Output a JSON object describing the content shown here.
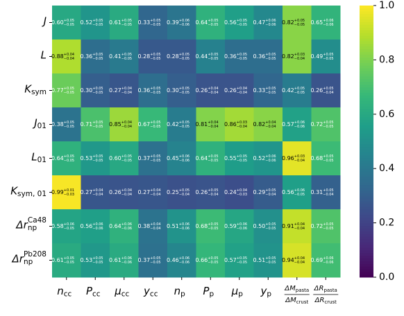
{
  "chart_data": {
    "type": "heatmap",
    "rows": [
      {
        "base": "J"
      },
      {
        "base": "L"
      },
      {
        "base": "K",
        "sub": "sym"
      },
      {
        "base": "J",
        "sub": "01"
      },
      {
        "base": "L",
        "sub": "01"
      },
      {
        "base": "K",
        "sub": "sym, 01"
      },
      {
        "base": "Δr",
        "sub": "np",
        "sup": "Ca48"
      },
      {
        "base": "Δr",
        "sub": "np",
        "sup": "Pb208"
      }
    ],
    "columns": [
      {
        "base": "n",
        "sub": "cc"
      },
      {
        "base": "P",
        "sub": "cc"
      },
      {
        "base": "μ",
        "sub": "cc"
      },
      {
        "base": "y",
        "sub": "cc"
      },
      {
        "base": "n",
        "sub": "p"
      },
      {
        "base": "P",
        "sub": "p"
      },
      {
        "base": "μ",
        "sub": "p"
      },
      {
        "base": "y",
        "sub": "p"
      },
      {
        "num": {
          "base": "ΔM",
          "sub": "pasta"
        },
        "den": {
          "base": "ΔM",
          "sub": "crust"
        }
      },
      {
        "num": {
          "base": "ΔR",
          "sub": "pasta"
        },
        "den": {
          "base": "ΔR",
          "sub": "crust"
        }
      }
    ],
    "values": [
      [
        0.6,
        0.52,
        0.61,
        0.33,
        0.39,
        0.64,
        0.56,
        0.47,
        0.82,
        0.65
      ],
      [
        0.88,
        0.36,
        0.41,
        0.28,
        0.28,
        0.44,
        0.36,
        0.36,
        0.82,
        0.49
      ],
      [
        0.77,
        0.3,
        0.27,
        0.36,
        0.3,
        0.26,
        0.26,
        0.33,
        0.42,
        0.26
      ],
      [
        0.38,
        0.71,
        0.85,
        0.67,
        0.42,
        0.81,
        0.86,
        0.82,
        0.57,
        0.72
      ],
      [
        0.64,
        0.53,
        0.6,
        0.37,
        0.45,
        0.64,
        0.55,
        0.52,
        0.96,
        0.68
      ],
      [
        0.99,
        0.27,
        0.26,
        0.27,
        0.25,
        0.26,
        0.24,
        0.29,
        0.56,
        0.31
      ],
      [
        0.58,
        0.56,
        0.64,
        0.38,
        0.51,
        0.68,
        0.59,
        0.5,
        0.91,
        0.72
      ],
      [
        0.61,
        0.53,
        0.61,
        0.37,
        0.46,
        0.66,
        0.57,
        0.51,
        0.94,
        0.69
      ]
    ],
    "value_labels": [
      [
        "0.60",
        "0.52",
        "0.61",
        "0.33",
        "0.39",
        "0.64",
        "0.56",
        "0.47",
        "0.82",
        "0.65"
      ],
      [
        "0.88",
        "0.36",
        "0.41",
        "0.28",
        "0.28",
        "0.44",
        "0.36",
        "0.36",
        "0.82",
        "0.49"
      ],
      [
        "0.77",
        "0.30",
        "0.27",
        "0.36",
        "0.30",
        "0.26",
        "0.26",
        "0.33",
        "0.42",
        "0.26"
      ],
      [
        "0.38",
        "0.71",
        "0.85",
        "0.67",
        "0.42",
        "0.81",
        "0.86",
        "0.82",
        "0.57",
        "0.72"
      ],
      [
        "0.64",
        "0.53",
        "0.60",
        "0.37",
        "0.45",
        "0.64",
        "0.55",
        "0.52",
        "0.96",
        "0.68"
      ],
      [
        "0.99",
        "0.27",
        "0.26",
        "0.27",
        "0.25",
        "0.26",
        "0.24",
        "0.29",
        "0.56",
        "0.31"
      ],
      [
        "0.58",
        "0.56",
        "0.64",
        "0.38",
        "0.51",
        "0.68",
        "0.59",
        "0.50",
        "0.91",
        "0.72"
      ],
      [
        "0.61",
        "0.53",
        "0.61",
        "0.37",
        "0.46",
        "0.66",
        "0.57",
        "0.51",
        "0.94",
        "0.69"
      ]
    ],
    "err_plus": [
      [
        0.05,
        0.05,
        0.05,
        0.05,
        0.06,
        0.05,
        0.05,
        0.06,
        0.05,
        0.06
      ],
      [
        0.04,
        0.05,
        0.05,
        0.05,
        0.05,
        0.05,
        0.05,
        0.05,
        0.03,
        0.05
      ],
      [
        0.05,
        0.05,
        0.04,
        0.05,
        0.05,
        0.04,
        0.04,
        0.05,
        0.05,
        0.05
      ],
      [
        0.05,
        0.05,
        0.04,
        0.05,
        0.05,
        0.04,
        0.03,
        0.04,
        0.06,
        0.05
      ],
      [
        0.05,
        0.05,
        0.05,
        0.05,
        0.06,
        0.05,
        0.05,
        0.06,
        0.03,
        0.05
      ],
      [
        0.01,
        0.04,
        0.04,
        0.04,
        0.05,
        0.05,
        0.04,
        0.05,
        0.06,
        0.05
      ],
      [
        0.06,
        0.06,
        0.06,
        0.04,
        0.06,
        0.05,
        0.06,
        0.05,
        0.04,
        0.05
      ],
      [
        0.05,
        0.05,
        0.06,
        0.05,
        0.06,
        0.05,
        0.05,
        0.05,
        0.04,
        0.06
      ]
    ],
    "err_minus": [
      [
        0.05,
        0.05,
        0.05,
        0.05,
        0.06,
        0.05,
        0.05,
        0.06,
        0.05,
        0.06
      ],
      [
        0.04,
        0.05,
        0.05,
        0.05,
        0.05,
        0.05,
        0.05,
        0.05,
        0.04,
        0.05
      ],
      [
        0.05,
        0.05,
        0.04,
        0.05,
        0.05,
        0.04,
        0.04,
        0.05,
        0.05,
        0.04
      ],
      [
        0.05,
        0.05,
        0.04,
        0.05,
        0.05,
        0.04,
        0.04,
        0.04,
        0.06,
        0.05
      ],
      [
        0.05,
        0.05,
        0.05,
        0.05,
        0.06,
        0.05,
        0.05,
        0.06,
        0.04,
        0.05
      ],
      [
        0.03,
        0.04,
        0.04,
        0.04,
        0.04,
        0.04,
        0.03,
        0.04,
        0.05,
        0.04
      ],
      [
        0.05,
        0.06,
        0.06,
        0.04,
        0.06,
        0.05,
        0.06,
        0.05,
        0.04,
        0.05
      ],
      [
        0.05,
        0.05,
        0.06,
        0.05,
        0.06,
        0.05,
        0.05,
        0.05,
        0.04,
        0.06
      ]
    ],
    "err_plus_labels": [
      [
        "+0.05",
        "+0.05",
        "+0.05",
        "+0.05",
        "+0.06",
        "+0.05",
        "+0.05",
        "+0.06",
        "+0.05",
        "+0.06"
      ],
      [
        "+0.04",
        "+0.05",
        "+0.05",
        "+0.05",
        "+0.05",
        "+0.05",
        "+0.05",
        "+0.05",
        "+0.03",
        "+0.05"
      ],
      [
        "+0.05",
        "+0.05",
        "+0.04",
        "+0.05",
        "+0.05",
        "+0.04",
        "+0.04",
        "+0.05",
        "+0.05",
        "+0.05"
      ],
      [
        "+0.05",
        "+0.05",
        "+0.04",
        "+0.05",
        "+0.05",
        "+0.04",
        "+0.03",
        "+0.04",
        "+0.06",
        "+0.05"
      ],
      [
        "+0.05",
        "+0.05",
        "+0.05",
        "+0.05",
        "+0.06",
        "+0.05",
        "+0.05",
        "+0.06",
        "+0.03",
        "+0.05"
      ],
      [
        "+0.01",
        "+0.04",
        "+0.04",
        "+0.04",
        "+0.05",
        "+0.05",
        "+0.04",
        "+0.05",
        "+0.06",
        "+0.05"
      ],
      [
        "+0.06",
        "+0.06",
        "+0.06",
        "+0.04",
        "+0.06",
        "+0.05",
        "+0.06",
        "+0.05",
        "+0.04",
        "+0.05"
      ],
      [
        "+0.05",
        "+0.05",
        "+0.06",
        "+0.05",
        "+0.06",
        "+0.05",
        "+0.05",
        "+0.05",
        "+0.04",
        "+0.06"
      ]
    ],
    "err_minus_labels": [
      [
        "−0.05",
        "−0.05",
        "−0.05",
        "−0.05",
        "−0.06",
        "−0.05",
        "−0.05",
        "−0.06",
        "−0.05",
        "−0.06"
      ],
      [
        "−0.04",
        "−0.05",
        "−0.05",
        "−0.05",
        "−0.05",
        "−0.05",
        "−0.05",
        "−0.05",
        "−0.04",
        "−0.05"
      ],
      [
        "−0.05",
        "−0.05",
        "−0.04",
        "−0.05",
        "−0.05",
        "−0.04",
        "−0.04",
        "−0.05",
        "−0.05",
        "−0.04"
      ],
      [
        "−0.05",
        "−0.05",
        "−0.04",
        "−0.05",
        "−0.05",
        "−0.04",
        "−0.04",
        "−0.04",
        "−0.06",
        "−0.05"
      ],
      [
        "−0.05",
        "−0.05",
        "−0.05",
        "−0.05",
        "−0.06",
        "−0.05",
        "−0.05",
        "−0.06",
        "−0.04",
        "−0.05"
      ],
      [
        "−0.03",
        "−0.04",
        "−0.04",
        "−0.04",
        "−0.04",
        "−0.04",
        "−0.03",
        "−0.04",
        "−0.05",
        "−0.04"
      ],
      [
        "−0.05",
        "−0.06",
        "−0.06",
        "−0.04",
        "−0.06",
        "−0.05",
        "−0.06",
        "−0.05",
        "−0.04",
        "−0.05"
      ],
      [
        "−0.05",
        "−0.05",
        "−0.06",
        "−0.05",
        "−0.06",
        "−0.05",
        "−0.05",
        "−0.05",
        "−0.04",
        "−0.06"
      ]
    ],
    "colormap": [
      "#440154",
      "#482878",
      "#3e4989",
      "#31688e",
      "#26828e",
      "#1f9e89",
      "#35b779",
      "#6ece58",
      "#b5de2b",
      "#fde725"
    ],
    "ylim": [
      0,
      1
    ],
    "yticks": [
      {
        "value": 0,
        "label": "0.0"
      },
      0.2,
      0.4,
      0.6,
      0.8,
      {
        "value": 1,
        "label": "1.0"
      }
    ]
  }
}
